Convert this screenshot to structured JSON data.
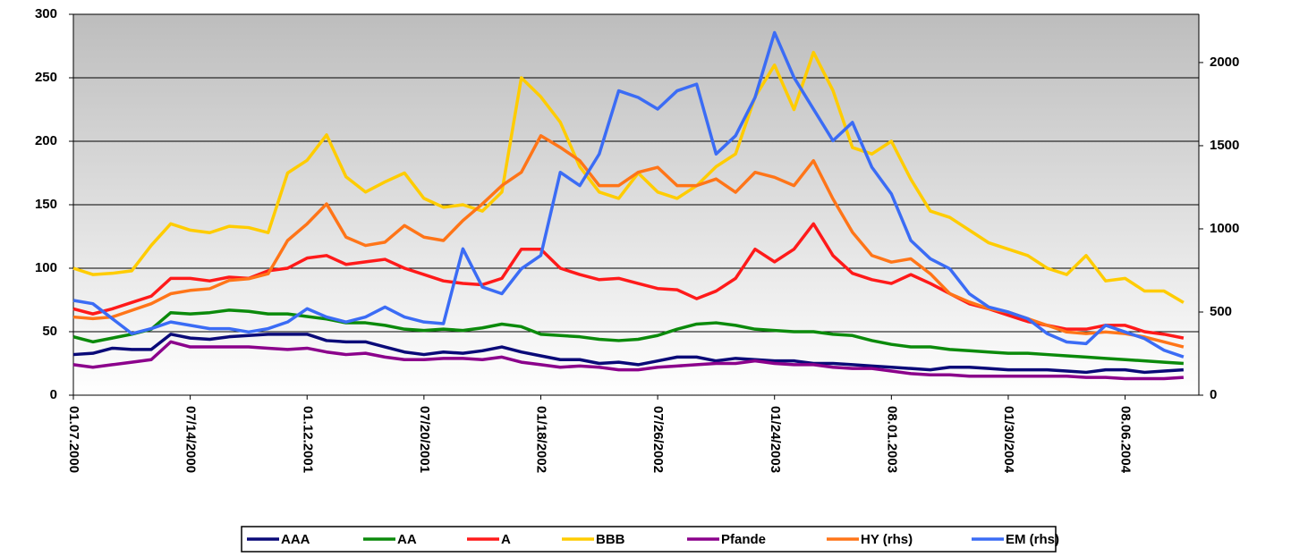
{
  "chart_data": {
    "type": "line",
    "categories": [
      "01.07.2000",
      null,
      null,
      null,
      null,
      null,
      "07/14/2000",
      null,
      null,
      null,
      null,
      null,
      "01.12.2001",
      null,
      null,
      null,
      null,
      null,
      "07/20/2001",
      null,
      null,
      null,
      null,
      null,
      "01/18/2002",
      null,
      null,
      null,
      null,
      null,
      "07/26/2002",
      null,
      null,
      null,
      null,
      null,
      "01/24/2003",
      null,
      null,
      null,
      null,
      null,
      "08.01.2003",
      null,
      null,
      null,
      null,
      null,
      "01/30/2004",
      null,
      null,
      null,
      null,
      null,
      "08.06.2004",
      null,
      null,
      null
    ],
    "ylim": [
      0,
      300
    ],
    "yticks": [
      0,
      50,
      100,
      150,
      200,
      250,
      300
    ],
    "y2lim": [
      0,
      2290
    ],
    "y2ticks": [
      0,
      500,
      1000,
      1500,
      2000
    ],
    "grid": true,
    "legend": "bottom",
    "series": [
      {
        "name": "AAA",
        "color": "#0a0a78",
        "values": [
          32,
          33,
          37,
          36,
          36,
          48,
          45,
          44,
          46,
          47,
          48,
          48,
          48,
          43,
          42,
          42,
          38,
          34,
          32,
          34,
          33,
          35,
          38,
          34,
          31,
          28,
          28,
          25,
          26,
          24,
          27,
          30,
          30,
          27,
          29,
          28,
          27,
          27,
          25,
          25,
          24,
          23,
          22,
          21,
          20,
          22,
          22,
          21,
          20,
          20,
          20,
          19,
          18,
          20,
          20,
          18,
          19,
          20
        ]
      },
      {
        "name": "AA",
        "color": "#0b8a0b",
        "values": [
          46,
          42,
          45,
          48,
          52,
          65,
          64,
          65,
          67,
          66,
          64,
          64,
          62,
          60,
          57,
          57,
          55,
          52,
          51,
          52,
          51,
          53,
          56,
          54,
          48,
          47,
          46,
          44,
          43,
          44,
          47,
          52,
          56,
          57,
          55,
          52,
          51,
          50,
          50,
          48,
          47,
          43,
          40,
          38,
          38,
          36,
          35,
          34,
          33,
          33,
          32,
          31,
          30,
          29,
          28,
          27,
          26,
          25
        ]
      },
      {
        "name": "A",
        "color": "#ff1a1a",
        "values": [
          68,
          64,
          68,
          73,
          78,
          92,
          92,
          90,
          93,
          92,
          98,
          100,
          108,
          110,
          103,
          105,
          107,
          100,
          95,
          90,
          88,
          87,
          92,
          115,
          115,
          100,
          95,
          91,
          92,
          88,
          84,
          83,
          76,
          82,
          92,
          115,
          105,
          115,
          135,
          110,
          96,
          91,
          88,
          95,
          88,
          80,
          72,
          68,
          63,
          58,
          55,
          52,
          52,
          55,
          55,
          50,
          48,
          45
        ]
      },
      {
        "name": "BBB",
        "color": "#ffcc00",
        "values": [
          100,
          95,
          96,
          98,
          118,
          135,
          130,
          128,
          133,
          132,
          128,
          175,
          185,
          205,
          172,
          160,
          168,
          175,
          155,
          148,
          150,
          145,
          160,
          250,
          235,
          215,
          180,
          160,
          155,
          175,
          160,
          155,
          165,
          180,
          190,
          235,
          260,
          225,
          270,
          240,
          195,
          190,
          200,
          170,
          145,
          140,
          130,
          120,
          115,
          110,
          100,
          95,
          110,
          90,
          92,
          82,
          82,
          73
        ]
      },
      {
        "name": "Pfande",
        "color": "#8b008b",
        "values": [
          24,
          22,
          24,
          26,
          28,
          42,
          38,
          38,
          38,
          38,
          37,
          36,
          37,
          34,
          32,
          33,
          30,
          28,
          28,
          29,
          29,
          28,
          30,
          26,
          24,
          22,
          23,
          22,
          20,
          20,
          22,
          23,
          24,
          25,
          25,
          27,
          25,
          24,
          24,
          22,
          21,
          21,
          19,
          17,
          16,
          16,
          15,
          15,
          15,
          15,
          15,
          15,
          14,
          14,
          13,
          13,
          13,
          14
        ]
      },
      {
        "name": "HY (rhs)",
        "color": "#ff7518",
        "axis": "y2",
        "values": [
          470,
          460,
          470,
          510,
          550,
          610,
          630,
          640,
          690,
          700,
          730,
          930,
          1030,
          1150,
          950,
          900,
          920,
          1020,
          950,
          930,
          1050,
          1150,
          1260,
          1340,
          1560,
          1490,
          1410,
          1260,
          1260,
          1340,
          1370,
          1260,
          1260,
          1300,
          1220,
          1340,
          1310,
          1260,
          1410,
          1180,
          980,
          840,
          800,
          820,
          730,
          610,
          560,
          520,
          500,
          460,
          420,
          380,
          370,
          380,
          370,
          350,
          320,
          290
        ]
      },
      {
        "name": "EM (rhs)",
        "color": "#3b6cf5",
        "axis": "y2",
        "values": [
          570,
          550,
          460,
          370,
          400,
          440,
          420,
          400,
          400,
          380,
          400,
          440,
          520,
          470,
          440,
          470,
          530,
          470,
          440,
          430,
          880,
          650,
          610,
          760,
          840,
          1340,
          1260,
          1450,
          1830,
          1790,
          1720,
          1830,
          1870,
          1450,
          1560,
          1790,
          2180,
          1910,
          1720,
          1530,
          1640,
          1370,
          1210,
          930,
          820,
          760,
          610,
          530,
          500,
          460,
          370,
          320,
          310,
          420,
          380,
          340,
          270,
          230
        ]
      }
    ]
  }
}
